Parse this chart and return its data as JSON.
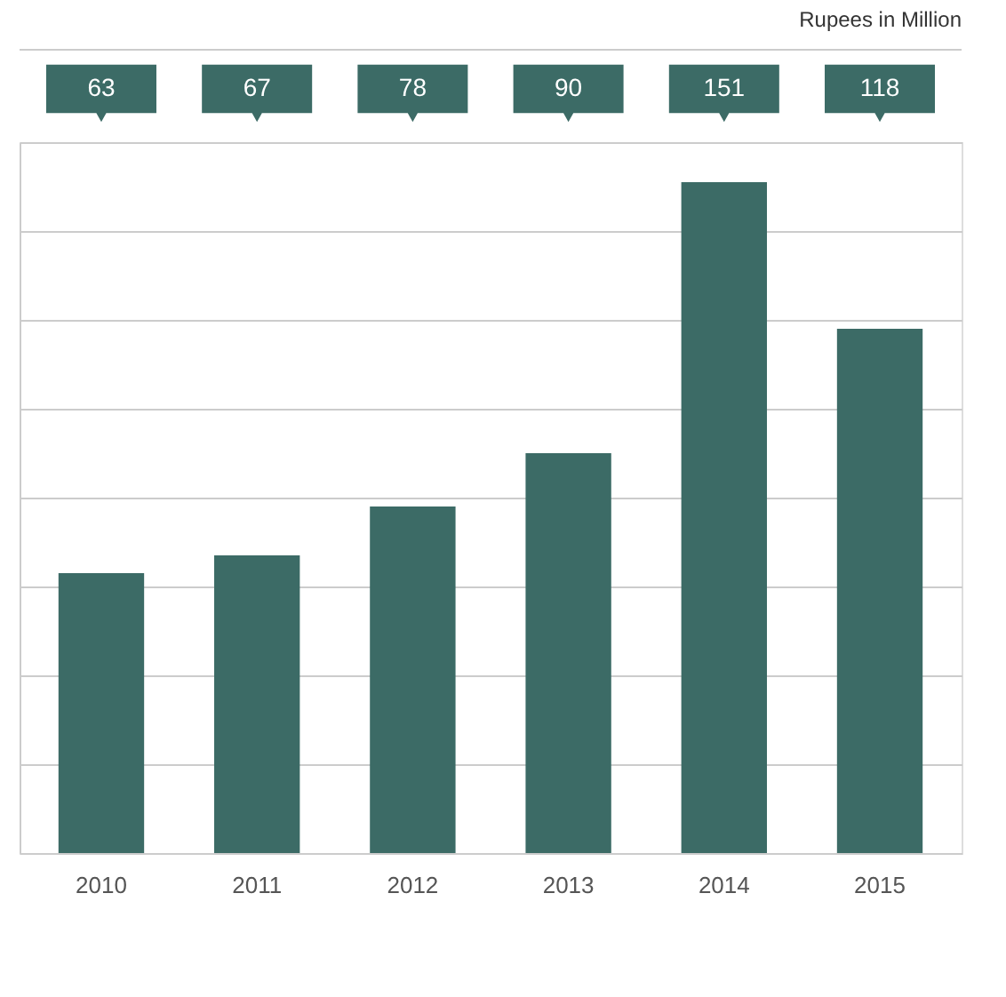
{
  "chart_data": {
    "type": "bar",
    "annotations": [
      "Rupees in Million"
    ],
    "categories": [
      "2010",
      "2011",
      "2012",
      "2013",
      "2014",
      "2015"
    ],
    "values": [
      63,
      67,
      78,
      90,
      151,
      118
    ],
    "color": "#3c6b66",
    "data_labels": true,
    "grid": "y"
  }
}
